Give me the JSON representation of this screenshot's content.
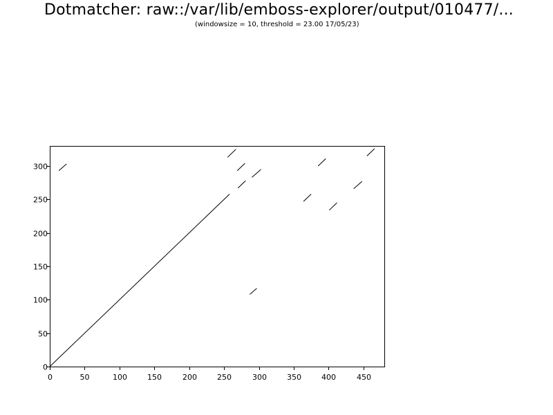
{
  "header": {
    "title": "Dotmatcher: raw::/var/lib/emboss-explorer/output/010477/...",
    "subtitle": "(windowsize = 10, threshold = 23.00  17/05/23)"
  },
  "chart_data": {
    "type": "scatter",
    "title": "Dotmatcher: raw::/var/lib/emboss-explorer/output/010477/...",
    "subtitle": "(windowsize = 10, threshold = 23.00  17/05/23)",
    "xlim": [
      0,
      480
    ],
    "ylim": [
      0,
      330
    ],
    "x_ticks": [
      0,
      50,
      100,
      150,
      200,
      250,
      300,
      350,
      400,
      450
    ],
    "x_tick_labels": [
      "0",
      "50",
      "100",
      "150",
      "200",
      "250",
      "300",
      "350",
      "400",
      "450"
    ],
    "y_ticks": [
      0,
      50,
      100,
      150,
      200,
      250,
      300
    ],
    "y_tick_labels": [
      "0",
      "50",
      "100",
      "150",
      "200",
      "250",
      "300"
    ],
    "grid": false,
    "line_color": "#000000",
    "segments": [
      {
        "x1": 0,
        "y1": 0,
        "x2": 258,
        "y2": 258
      },
      {
        "x1": 13,
        "y1": 293,
        "x2": 24,
        "y2": 303
      },
      {
        "x1": 255,
        "y1": 313,
        "x2": 267,
        "y2": 325
      },
      {
        "x1": 269,
        "y1": 293,
        "x2": 280,
        "y2": 304
      },
      {
        "x1": 270,
        "y1": 267,
        "x2": 281,
        "y2": 278
      },
      {
        "x1": 290,
        "y1": 283,
        "x2": 303,
        "y2": 295
      },
      {
        "x1": 287,
        "y1": 108,
        "x2": 297,
        "y2": 117
      },
      {
        "x1": 364,
        "y1": 247,
        "x2": 375,
        "y2": 258
      },
      {
        "x1": 385,
        "y1": 300,
        "x2": 396,
        "y2": 311
      },
      {
        "x1": 401,
        "y1": 234,
        "x2": 412,
        "y2": 245
      },
      {
        "x1": 436,
        "y1": 266,
        "x2": 448,
        "y2": 277
      },
      {
        "x1": 455,
        "y1": 315,
        "x2": 466,
        "y2": 326
      }
    ]
  }
}
